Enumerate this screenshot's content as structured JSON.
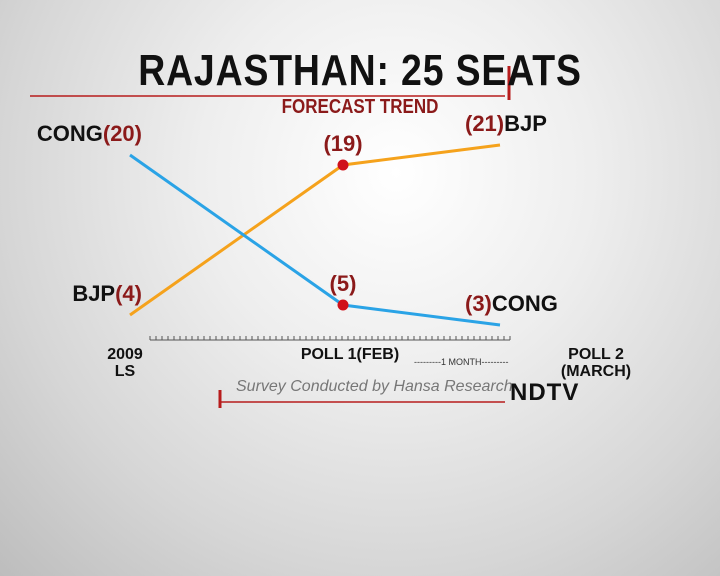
{
  "chart_data": {
    "type": "line",
    "title": "RAJASTHAN: 25 SEATS",
    "subtitle": "FORECAST TREND",
    "categories": [
      "2009\nLS",
      "POLL 1(FEB)",
      "POLL 2 (MARCH)"
    ],
    "series": [
      {
        "name": "BJP",
        "color": "#f5a21c",
        "values": [
          4,
          19,
          21
        ],
        "value_labels": [
          "(4)",
          "(19)",
          "(21)"
        ]
      },
      {
        "name": "CONG",
        "color": "#2aa3e6",
        "values": [
          20,
          5,
          3
        ],
        "value_labels": [
          "(20)",
          "(5)",
          "(3)"
        ]
      }
    ],
    "annotation": "---------1 MONTH---------",
    "source": "Survey Conducted by Hansa Research",
    "logo": "NDTV"
  }
}
